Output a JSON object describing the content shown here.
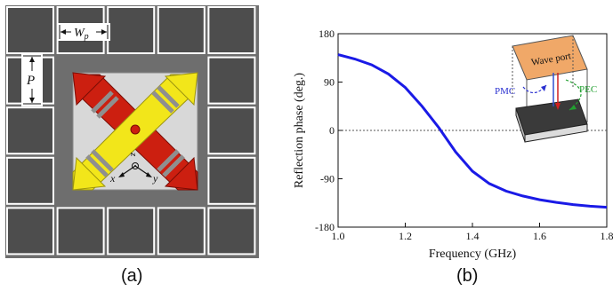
{
  "panel_a": {
    "caption": "(a)",
    "dim_wp": "W",
    "dim_wp_sub": "p",
    "dim_p": "P",
    "axis_x": "x",
    "axis_y": "y",
    "axis_z": "z",
    "colors": {
      "background": "#6e6e6e",
      "patch": "#4d4d4d",
      "grid_line": "#ffffff",
      "center_substrate": "#d8d8d8",
      "arm_red": "#cc1f10",
      "arm_yellow": "#f2e61a"
    }
  },
  "panel_b": {
    "caption": "(b)",
    "inset": {
      "wave_port": "Wave port",
      "pmc": "PMC",
      "pec": "PEC"
    }
  },
  "chart_data": {
    "type": "line",
    "title": "",
    "xlabel": "Frequency (GHz)",
    "ylabel": "Reflection phase (deg.)",
    "xlim": [
      1.0,
      1.8
    ],
    "ylim": [
      -180,
      180
    ],
    "xticks": [
      "1.0",
      "1.2",
      "1.4",
      "1.6",
      "1.8"
    ],
    "yticks": [
      "180",
      "90",
      "0",
      "-90",
      "-180"
    ],
    "reference_line_y": 0,
    "series": [
      {
        "color": "#1a1ae6",
        "x": [
          1.0,
          1.05,
          1.1,
          1.15,
          1.2,
          1.25,
          1.3,
          1.35,
          1.4,
          1.45,
          1.5,
          1.55,
          1.6,
          1.65,
          1.7,
          1.75,
          1.8
        ],
        "y": [
          141,
          133,
          122,
          105,
          80,
          45,
          5,
          -40,
          -76,
          -99,
          -113,
          -122,
          -129,
          -134,
          -138,
          -141,
          -143
        ]
      }
    ]
  }
}
